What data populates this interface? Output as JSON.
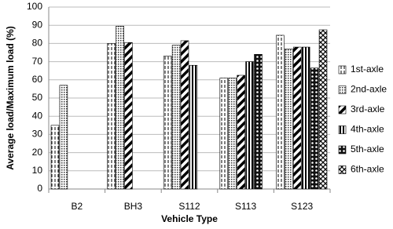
{
  "chart_data": {
    "type": "bar",
    "x_label": "Vehicle Type",
    "y_label": "Average load/Maximum load (%)",
    "categories": [
      "B2",
      "BH3",
      "S112",
      "S113",
      "S123"
    ],
    "series": [
      {
        "name": "1st-axle",
        "color": "#000000",
        "values": [
          35,
          80,
          73,
          61,
          84.5
        ]
      },
      {
        "name": "2nd-axle",
        "color": "#000000",
        "values": [
          57,
          89.5,
          79,
          61,
          77
        ]
      },
      {
        "name": "3rd-axle",
        "color": "#000000",
        "values": [
          null,
          80.5,
          81.5,
          62.5,
          78
        ]
      },
      {
        "name": "4th-axle",
        "color": "#000000",
        "values": [
          null,
          null,
          68,
          70,
          78
        ]
      },
      {
        "name": "5th-axle",
        "color": "#000000",
        "values": [
          null,
          null,
          null,
          74,
          66.5
        ]
      },
      {
        "name": "6th-axle",
        "color": "#000000",
        "values": [
          null,
          null,
          null,
          null,
          87.5
        ]
      }
    ],
    "ylim": [
      0,
      100
    ],
    "yticks": [
      0,
      10,
      20,
      30,
      40,
      50,
      60,
      70,
      80,
      90,
      100
    ],
    "grid": true,
    "legend": "right"
  }
}
